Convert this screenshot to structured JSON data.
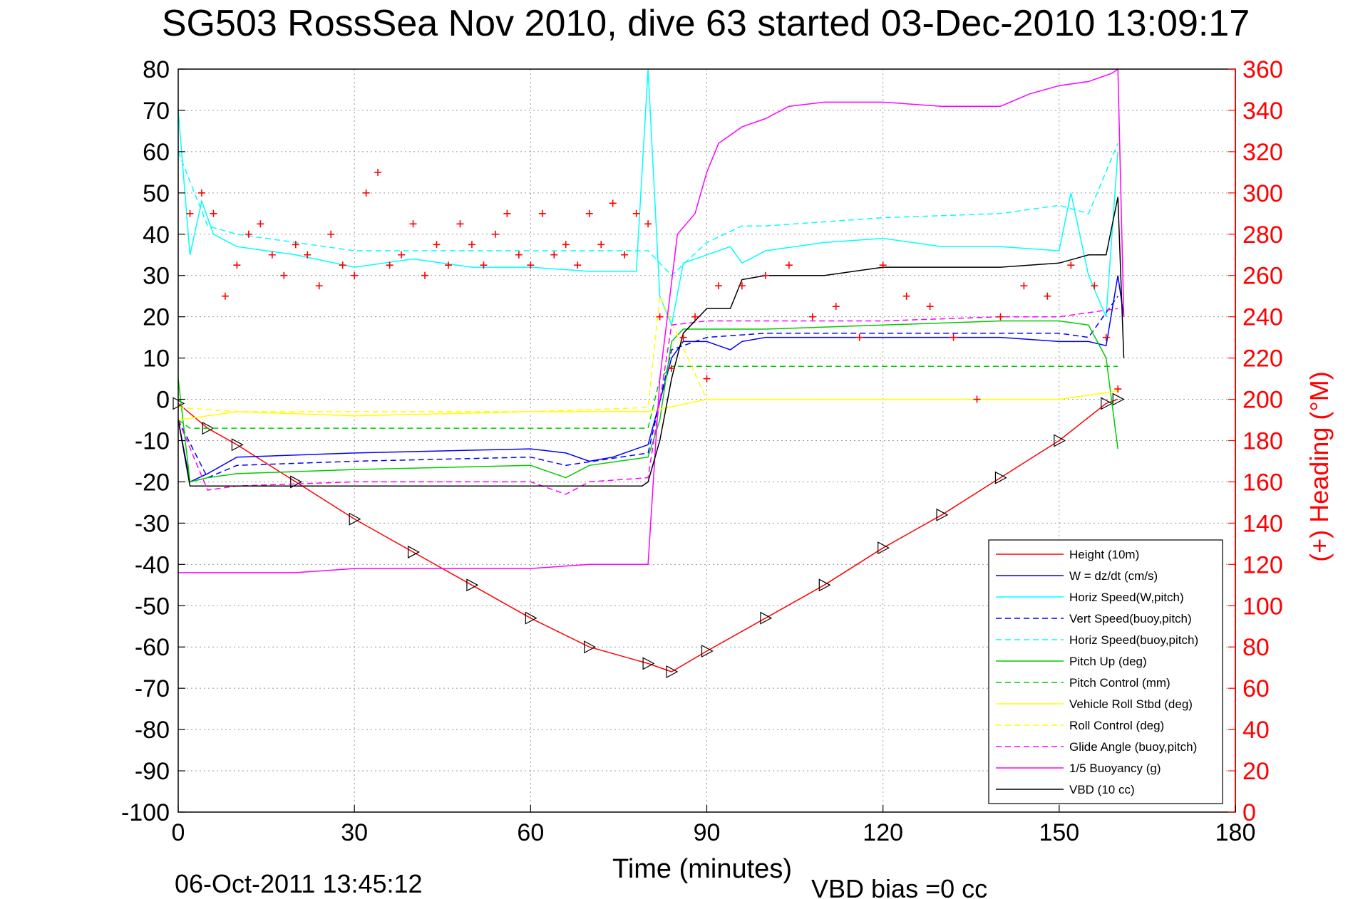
{
  "chart_data": {
    "type": "line",
    "title": "SG503 RossSea Nov 2010, dive 63 started 03-Dec-2010 13:09:17",
    "xlabel": "Time (minutes)",
    "ylabel": "",
    "ylabel_right": "(+) Heading (°M)",
    "footer_left": "06-Oct-2011 13:45:12",
    "footer_right": "VBD bias =0 cc",
    "xlim": [
      0,
      180
    ],
    "ylim": [
      -100,
      80
    ],
    "ylim_right": [
      0,
      360
    ],
    "xticks": [
      0,
      30,
      60,
      90,
      120,
      150,
      180
    ],
    "yticks": [
      -100,
      -90,
      -80,
      -70,
      -60,
      -50,
      -40,
      -30,
      -20,
      -10,
      0,
      10,
      20,
      30,
      40,
      50,
      60,
      70,
      80
    ],
    "yticks_right": [
      0,
      20,
      40,
      60,
      80,
      100,
      120,
      140,
      160,
      180,
      200,
      220,
      240,
      260,
      280,
      300,
      320,
      340,
      360
    ],
    "grid": true,
    "legend_position": "bottom-right",
    "colors": {
      "axis": "#000000",
      "right_axis": "#ff0000",
      "grid": "#999999"
    },
    "series": [
      {
        "name": "Height (10m)",
        "color": "#ff0000",
        "style": "solid",
        "x": [
          0,
          5,
          10,
          20,
          30,
          40,
          50,
          60,
          70,
          80,
          84,
          90,
          100,
          110,
          120,
          130,
          140,
          150,
          158,
          160
        ],
        "y": [
          -1,
          -7,
          -11,
          -20,
          -29,
          -37,
          -45,
          -53,
          -60,
          -64,
          -66,
          -61,
          -53,
          -45,
          -36,
          -28,
          -19,
          -10,
          -1,
          0
        ]
      },
      {
        "name": "W = dz/dt (cm/s)",
        "color": "#0000ff",
        "style": "solid",
        "x": [
          0,
          2,
          5,
          10,
          30,
          60,
          66,
          70,
          74,
          78,
          80,
          84,
          86,
          90,
          94,
          96,
          100,
          120,
          140,
          150,
          155,
          158,
          160,
          161
        ],
        "y": [
          -5,
          -20,
          -18,
          -14,
          -13,
          -12,
          -13,
          -15,
          -14,
          -12,
          -11,
          10,
          14,
          14,
          12,
          14,
          15,
          15,
          15,
          14,
          14,
          13,
          30,
          20
        ]
      },
      {
        "name": "Horiz Speed(W,pitch)",
        "color": "#00ffff",
        "style": "solid",
        "x": [
          0,
          2,
          4,
          6,
          10,
          20,
          30,
          40,
          50,
          60,
          70,
          78,
          80,
          82,
          84,
          86,
          90,
          94,
          96,
          100,
          110,
          120,
          130,
          140,
          150,
          152,
          155,
          158,
          160
        ],
        "y": [
          70,
          35,
          48,
          40,
          37,
          35,
          32,
          34,
          32,
          32,
          31,
          31,
          80,
          25,
          18,
          33,
          35,
          37,
          33,
          36,
          38,
          39,
          37,
          37,
          36,
          50,
          30,
          20,
          60
        ]
      },
      {
        "name": "Vert Speed(buoy,pitch)",
        "color": "#0000ff",
        "style": "dashed",
        "x": [
          0,
          5,
          10,
          30,
          60,
          66,
          80,
          84,
          90,
          100,
          120,
          140,
          150,
          155,
          160
        ],
        "y": [
          -5,
          -19,
          -16,
          -15,
          -14,
          -16,
          -13,
          12,
          15,
          16,
          16,
          16,
          16,
          15,
          25
        ]
      },
      {
        "name": "Horiz Speed(buoy,pitch)",
        "color": "#00ffff",
        "style": "dashed",
        "x": [
          0,
          5,
          10,
          30,
          60,
          80,
          84,
          90,
          96,
          100,
          120,
          140,
          150,
          155,
          160
        ],
        "y": [
          60,
          42,
          40,
          36,
          36,
          36,
          30,
          38,
          42,
          42,
          44,
          45,
          47,
          45,
          62
        ]
      },
      {
        "name": "Pitch Up (deg)",
        "color": "#00cc00",
        "style": "solid",
        "x": [
          0,
          2,
          5,
          10,
          30,
          60,
          66,
          70,
          80,
          82,
          84,
          86,
          90,
          100,
          120,
          140,
          150,
          155,
          158,
          160
        ],
        "y": [
          5,
          -20,
          -19,
          -18,
          -17,
          -16,
          -19,
          -16,
          -14,
          -5,
          14,
          17,
          17,
          17,
          18,
          19,
          19,
          18,
          10,
          -12
        ]
      },
      {
        "name": "Pitch Control (mm)",
        "color": "#00cc00",
        "style": "dashed",
        "x": [
          0,
          2,
          10,
          30,
          60,
          80,
          82,
          84,
          88,
          100,
          120,
          140,
          160
        ],
        "y": [
          -5,
          -7,
          -7,
          -7,
          -7,
          -7,
          5,
          8,
          8,
          8,
          8,
          8,
          8
        ]
      },
      {
        "name": "Vehicle Roll Stbd (deg)",
        "color": "#ffff00",
        "style": "solid",
        "x": [
          0,
          5,
          10,
          30,
          60,
          80,
          90,
          120,
          150,
          160
        ],
        "y": [
          -5,
          -4,
          -3,
          -4,
          -3,
          -3,
          0,
          0,
          0,
          2
        ]
      },
      {
        "name": "Roll Control (deg)",
        "color": "#ffff00",
        "style": "dashed",
        "x": [
          0,
          10,
          30,
          60,
          80,
          82,
          90,
          120,
          150,
          160
        ],
        "y": [
          -2,
          -3,
          -3,
          -3,
          -2,
          25,
          0,
          0,
          0,
          2
        ]
      },
      {
        "name": "Glide Angle (buoy,pitch)",
        "color": "#ff00ff",
        "style": "dashed",
        "x": [
          0,
          5,
          10,
          30,
          60,
          66,
          70,
          80,
          84,
          90,
          100,
          120,
          140,
          150,
          160
        ],
        "y": [
          -5,
          -22,
          -21,
          -20,
          -20,
          -23,
          -20,
          -19,
          18,
          19,
          19,
          19,
          20,
          20,
          22
        ]
      },
      {
        "name": "1/5 Buoyancy (g)",
        "color": "#ff00ff",
        "style": "solid",
        "x": [
          0,
          10,
          20,
          30,
          60,
          70,
          79,
          80,
          82,
          85,
          88,
          90,
          92,
          96,
          100,
          104,
          110,
          120,
          130,
          140,
          145,
          150,
          155,
          159,
          160,
          161
        ],
        "y": [
          -42,
          -42,
          -42,
          -41,
          -41,
          -40,
          -40,
          -40,
          5,
          40,
          45,
          55,
          62,
          66,
          68,
          71,
          72,
          72,
          71,
          71,
          74,
          76,
          77,
          79,
          80,
          20
        ]
      },
      {
        "name": "VBD (10 cc)",
        "color": "#000000",
        "style": "solid",
        "x": [
          0,
          2,
          5,
          10,
          30,
          60,
          79,
          80,
          82,
          84,
          86,
          90,
          94,
          96,
          100,
          110,
          120,
          130,
          140,
          150,
          155,
          158,
          160,
          161
        ],
        "y": [
          -5,
          -21,
          -21,
          -21,
          -21,
          -21,
          -21,
          -20,
          -10,
          5,
          16,
          22,
          22,
          29,
          30,
          30,
          32,
          32,
          32,
          33,
          35,
          35,
          49,
          10
        ]
      },
      {
        "name": "Heading",
        "color": "#ff0000",
        "style": "markers",
        "axis": "right",
        "x": [
          2,
          4,
          6,
          8,
          10,
          12,
          14,
          16,
          18,
          20,
          22,
          24,
          26,
          28,
          30,
          32,
          34,
          36,
          38,
          40,
          42,
          44,
          46,
          48,
          50,
          52,
          54,
          56,
          58,
          60,
          62,
          64,
          66,
          68,
          70,
          72,
          74,
          76,
          78,
          80,
          82,
          84,
          86,
          88,
          90,
          92,
          96,
          100,
          104,
          108,
          112,
          116,
          120,
          124,
          128,
          132,
          136,
          140,
          144,
          148,
          152,
          156,
          158,
          160
        ],
        "y": [
          290,
          300,
          290,
          250,
          265,
          280,
          285,
          270,
          260,
          275,
          270,
          255,
          280,
          265,
          260,
          300,
          310,
          265,
          270,
          285,
          260,
          275,
          265,
          285,
          275,
          265,
          280,
          290,
          270,
          265,
          290,
          270,
          275,
          265,
          290,
          275,
          295,
          270,
          290,
          285,
          240,
          215,
          230,
          240,
          210,
          255,
          255,
          260,
          265,
          240,
          245,
          230,
          265,
          250,
          245,
          230,
          200,
          240,
          255,
          250,
          265,
          255,
          230,
          205
        ]
      }
    ]
  }
}
